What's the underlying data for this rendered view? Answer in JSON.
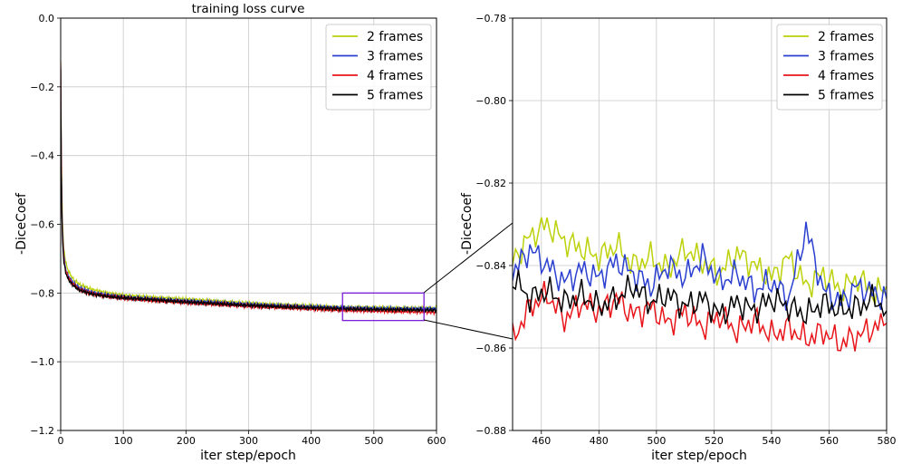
{
  "chart_data": [
    {
      "type": "line",
      "title": "training loss curve",
      "xlabel": "iter step/epoch",
      "ylabel": "-DiceCoef",
      "xlim": [
        0,
        600
      ],
      "ylim": [
        -1.2,
        0.0
      ],
      "xticks": [
        "0",
        "100",
        "200",
        "300",
        "400",
        "500",
        "600"
      ],
      "yticks": [
        "0.0",
        "−0.2",
        "−0.4",
        "−0.6",
        "−0.8",
        "−1.0",
        "−1.2"
      ],
      "grid": true,
      "legend_position": "top-right",
      "zoom_box": {
        "x": [
          450,
          580
        ],
        "y": [
          -0.88,
          -0.8
        ]
      },
      "series": [
        {
          "name": "2 frames",
          "color": "#bcd10a",
          "x": [
            0,
            1,
            2,
            3,
            5,
            8,
            12,
            20,
            30,
            50,
            75,
            100,
            150,
            200,
            250,
            300,
            350,
            400,
            450,
            500,
            550,
            600
          ],
          "values": [
            -0.12,
            -0.36,
            -0.52,
            -0.6,
            -0.67,
            -0.71,
            -0.735,
            -0.76,
            -0.775,
            -0.79,
            -0.8,
            -0.807,
            -0.813,
            -0.818,
            -0.824,
            -0.83,
            -0.834,
            -0.838,
            -0.842,
            -0.843,
            -0.844,
            -0.845
          ]
        },
        {
          "name": "3 frames",
          "color": "#2a3fd0",
          "x": [
            0,
            1,
            2,
            3,
            5,
            8,
            12,
            20,
            30,
            50,
            75,
            100,
            150,
            200,
            250,
            300,
            350,
            400,
            450,
            500,
            550,
            600
          ],
          "values": [
            -0.14,
            -0.4,
            -0.55,
            -0.62,
            -0.69,
            -0.73,
            -0.75,
            -0.77,
            -0.785,
            -0.798,
            -0.806,
            -0.812,
            -0.818,
            -0.823,
            -0.828,
            -0.833,
            -0.837,
            -0.84,
            -0.843,
            -0.845,
            -0.846,
            -0.846
          ]
        },
        {
          "name": "4 frames",
          "color": "#e8151a",
          "x": [
            0,
            1,
            2,
            3,
            5,
            8,
            12,
            20,
            30,
            50,
            75,
            100,
            150,
            200,
            250,
            300,
            350,
            400,
            450,
            500,
            550,
            600
          ],
          "values": [
            -0.13,
            -0.42,
            -0.57,
            -0.64,
            -0.7,
            -0.735,
            -0.755,
            -0.775,
            -0.79,
            -0.802,
            -0.81,
            -0.815,
            -0.822,
            -0.828,
            -0.833,
            -0.838,
            -0.842,
            -0.846,
            -0.85,
            -0.852,
            -0.854,
            -0.856
          ]
        },
        {
          "name": "5 frames",
          "color": "#000000",
          "x": [
            0,
            1,
            2,
            3,
            5,
            8,
            12,
            20,
            30,
            50,
            75,
            100,
            150,
            200,
            250,
            300,
            350,
            400,
            450,
            500,
            550,
            600
          ],
          "values": [
            -0.15,
            -0.45,
            -0.58,
            -0.65,
            -0.71,
            -0.74,
            -0.76,
            -0.778,
            -0.792,
            -0.803,
            -0.81,
            -0.814,
            -0.82,
            -0.826,
            -0.831,
            -0.836,
            -0.84,
            -0.843,
            -0.846,
            -0.848,
            -0.849,
            -0.85
          ]
        }
      ]
    },
    {
      "type": "line",
      "title": "",
      "xlabel": "iter step/epoch",
      "ylabel": "-DiceCoef",
      "xlim": [
        450,
        580
      ],
      "ylim": [
        -0.88,
        -0.78
      ],
      "xticks": [
        "460",
        "480",
        "500",
        "520",
        "540",
        "560",
        "580"
      ],
      "yticks": [
        "−0.78",
        "−0.80",
        "−0.82",
        "−0.84",
        "−0.86",
        "−0.88"
      ],
      "grid": true,
      "legend_position": "top-right",
      "series": [
        {
          "name": "2 frames",
          "color": "#bcd10a",
          "x": [
            450,
            456,
            462,
            468,
            474,
            480,
            486,
            492,
            498,
            504,
            510,
            516,
            522,
            528,
            534,
            540,
            546,
            552,
            558,
            564,
            570,
            576,
            580
          ],
          "values": [
            -0.839,
            -0.833,
            -0.83,
            -0.834,
            -0.836,
            -0.838,
            -0.835,
            -0.84,
            -0.838,
            -0.841,
            -0.836,
            -0.839,
            -0.842,
            -0.837,
            -0.84,
            -0.843,
            -0.838,
            -0.845,
            -0.842,
            -0.846,
            -0.843,
            -0.847,
            -0.845
          ]
        },
        {
          "name": "3 frames",
          "color": "#2a3fd0",
          "x": [
            450,
            456,
            462,
            468,
            474,
            480,
            486,
            492,
            498,
            504,
            510,
            516,
            522,
            528,
            534,
            540,
            546,
            552,
            558,
            564,
            570,
            576,
            580
          ],
          "values": [
            -0.842,
            -0.836,
            -0.84,
            -0.844,
            -0.841,
            -0.843,
            -0.839,
            -0.842,
            -0.845,
            -0.84,
            -0.843,
            -0.838,
            -0.844,
            -0.842,
            -0.846,
            -0.844,
            -0.848,
            -0.831,
            -0.846,
            -0.849,
            -0.845,
            -0.847,
            -0.848
          ]
        },
        {
          "name": "4 frames",
          "color": "#e8151a",
          "x": [
            450,
            456,
            462,
            468,
            474,
            480,
            486,
            492,
            498,
            504,
            510,
            516,
            522,
            528,
            534,
            540,
            546,
            552,
            558,
            564,
            570,
            576,
            580
          ],
          "values": [
            -0.858,
            -0.85,
            -0.847,
            -0.853,
            -0.849,
            -0.851,
            -0.848,
            -0.852,
            -0.85,
            -0.854,
            -0.851,
            -0.855,
            -0.852,
            -0.856,
            -0.853,
            -0.857,
            -0.855,
            -0.858,
            -0.856,
            -0.859,
            -0.857,
            -0.855,
            -0.854
          ]
        },
        {
          "name": "5 frames",
          "color": "#000000",
          "x": [
            450,
            456,
            462,
            468,
            474,
            480,
            486,
            492,
            498,
            504,
            510,
            516,
            522,
            528,
            534,
            540,
            546,
            552,
            558,
            564,
            570,
            576,
            580
          ],
          "values": [
            -0.843,
            -0.848,
            -0.846,
            -0.849,
            -0.847,
            -0.85,
            -0.848,
            -0.845,
            -0.849,
            -0.847,
            -0.85,
            -0.848,
            -0.852,
            -0.849,
            -0.851,
            -0.848,
            -0.85,
            -0.852,
            -0.849,
            -0.851,
            -0.85,
            -0.848,
            -0.851
          ]
        }
      ]
    }
  ]
}
